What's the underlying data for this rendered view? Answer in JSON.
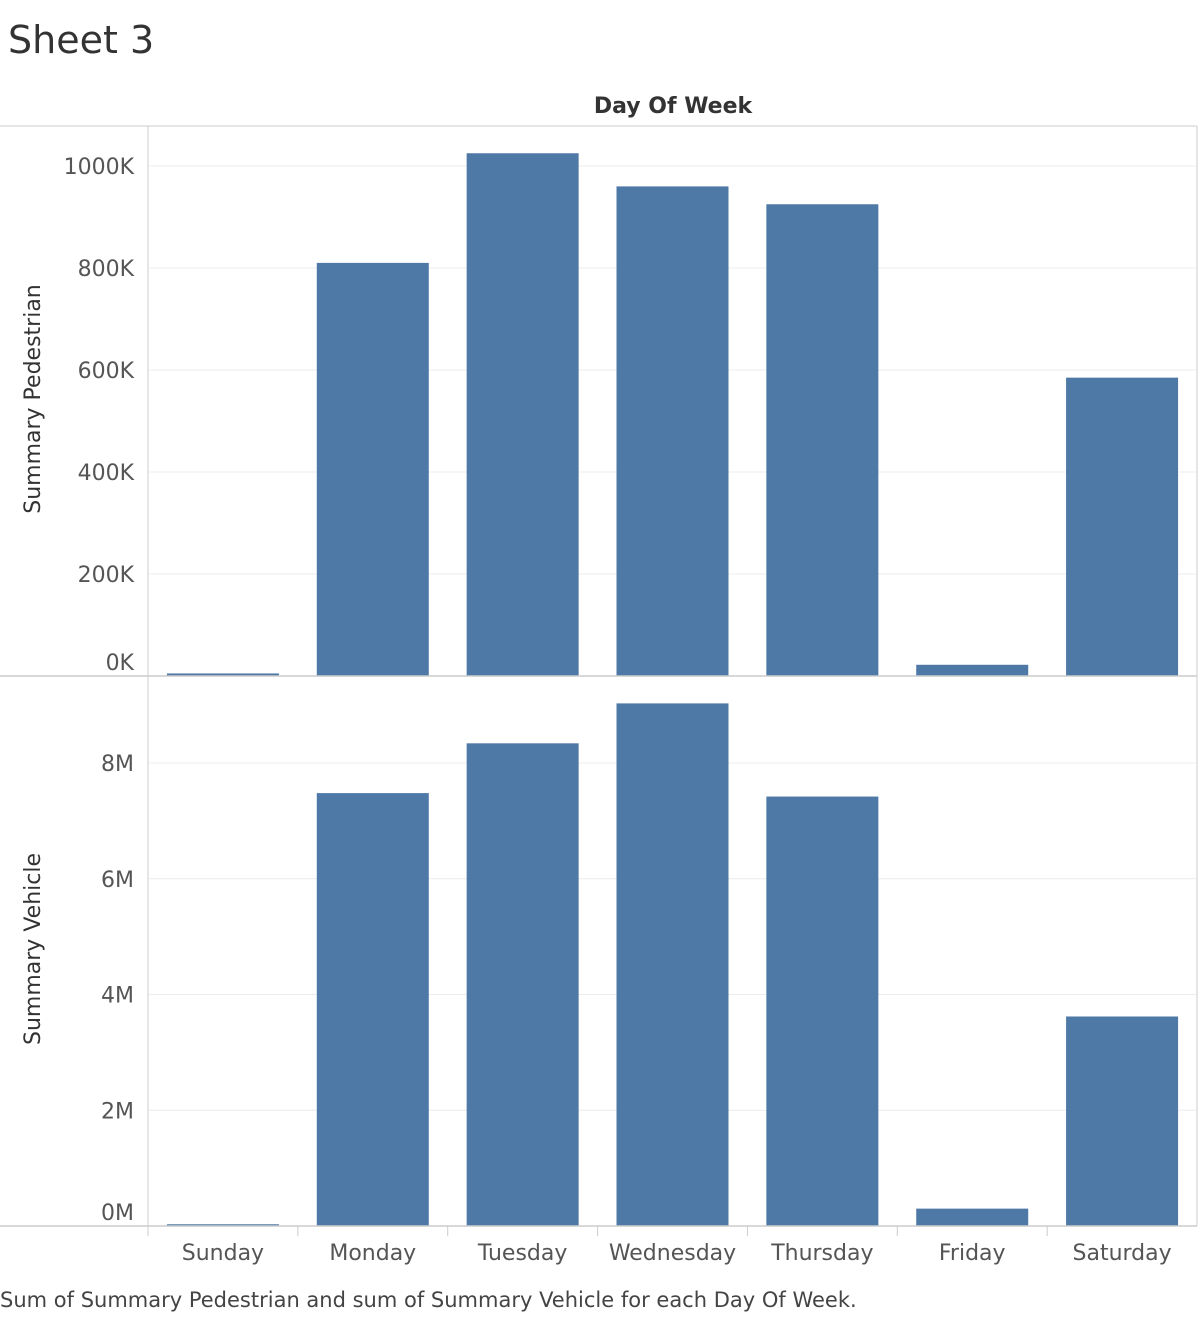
{
  "sheet_title": "Sheet 3",
  "caption": "Sum of Summary Pedestrian and sum of Summary Vehicle for each Day Of Week.",
  "colors": {
    "bar": "#4e79a7",
    "grid": "#ececec",
    "axis": "#cccccc",
    "text": "#555555"
  },
  "chart_data": {
    "type": "bar",
    "column_header": "Day Of Week",
    "categories": [
      "Sunday",
      "Monday",
      "Tuesday",
      "Wednesday",
      "Thursday",
      "Friday",
      "Saturday"
    ],
    "panes": [
      {
        "ylabel": "Summary Pedestrian",
        "values": [
          5000,
          810000,
          1025000,
          960000,
          925000,
          22000,
          585000
        ],
        "ylim": [
          0,
          1000000
        ],
        "ticks": [
          0,
          200000,
          400000,
          600000,
          800000,
          1000000
        ],
        "tick_labels": [
          "0K",
          "200K",
          "400K",
          "600K",
          "800K",
          "1000K"
        ]
      },
      {
        "ylabel": "Summary Vehicle",
        "values": [
          30000,
          7480000,
          8340000,
          9030000,
          7420000,
          300000,
          3620000
        ],
        "ylim": [
          0,
          8000000
        ],
        "ticks": [
          0,
          2000000,
          4000000,
          6000000,
          8000000
        ],
        "tick_labels": [
          "0M",
          "2M",
          "4M",
          "6M",
          "8M"
        ]
      }
    ],
    "grid": true,
    "legend": "none"
  }
}
